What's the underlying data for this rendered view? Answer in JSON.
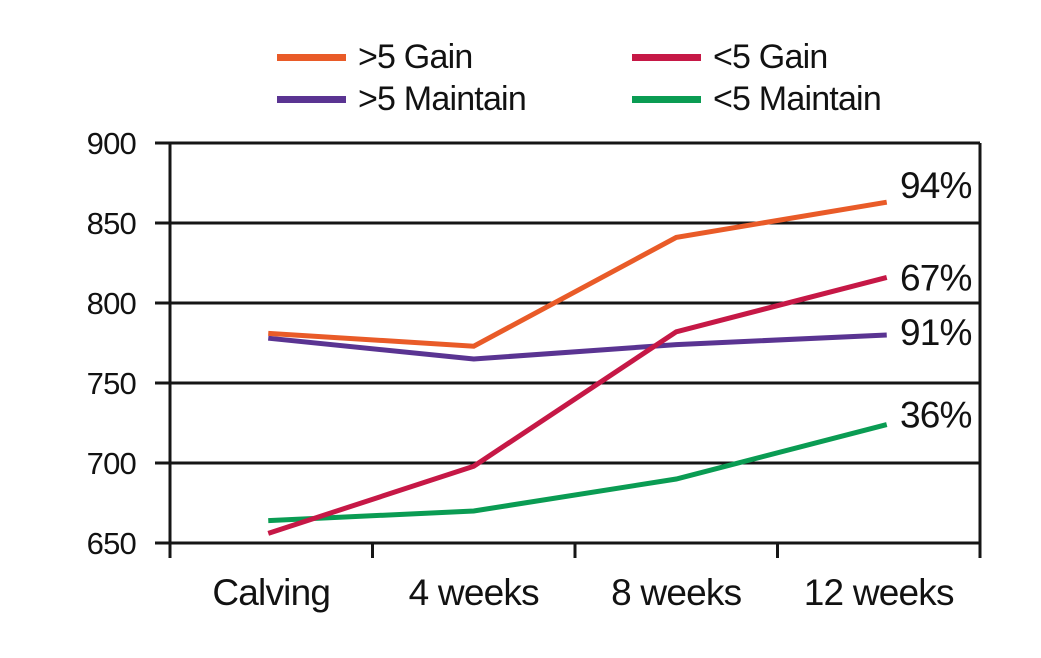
{
  "chart_data": {
    "type": "line",
    "title": "",
    "categories": [
      "Calving",
      "4 weeks",
      "8 weeks",
      "12 weeks"
    ],
    "series": [
      {
        "name": ">5 Gain",
        "color": "#E95B28",
        "values": [
          781,
          773,
          841,
          863
        ],
        "end_label": "94%"
      },
      {
        "name": "<5 Gain",
        "color": "#C61846",
        "values": [
          656,
          698,
          782,
          816
        ],
        "end_label": "67%"
      },
      {
        "name": ">5 Maintain",
        "color": "#5A3492",
        "values": [
          778,
          765,
          774,
          780
        ],
        "end_label": "91%"
      },
      {
        "name": "<5 Maintain",
        "color": "#0A9C53",
        "values": [
          664,
          670,
          690,
          724
        ],
        "end_label": "36%"
      }
    ],
    "xlabel": "",
    "ylabel": "",
    "ylim": [
      650,
      900
    ],
    "yticks": [
      650,
      700,
      750,
      800,
      850,
      900
    ],
    "grid": true,
    "legend_position": "top",
    "axis_color": "#161616"
  }
}
